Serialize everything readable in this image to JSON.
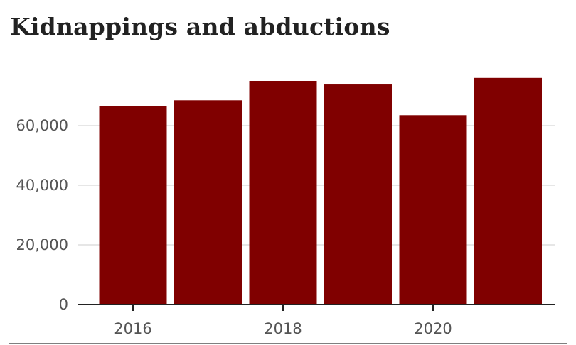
{
  "title": "Kidnappings and abductions",
  "chart_data": {
    "type": "bar",
    "title": "Kidnappings and abductions",
    "xlabel": "",
    "ylabel": "",
    "x": [
      2016,
      2017,
      2018,
      2019,
      2020,
      2021
    ],
    "values": [
      66500,
      68500,
      75000,
      73800,
      63500,
      76000
    ],
    "x_tick_labels": [
      "2016",
      "2018",
      "2020"
    ],
    "y_ticks": [
      0,
      20000,
      40000,
      60000
    ],
    "y_tick_labels": [
      "0",
      "20,000",
      "40,000",
      "60,000"
    ],
    "ylim": [
      0,
      80000
    ],
    "bar_color": "#800000",
    "grid": true
  }
}
